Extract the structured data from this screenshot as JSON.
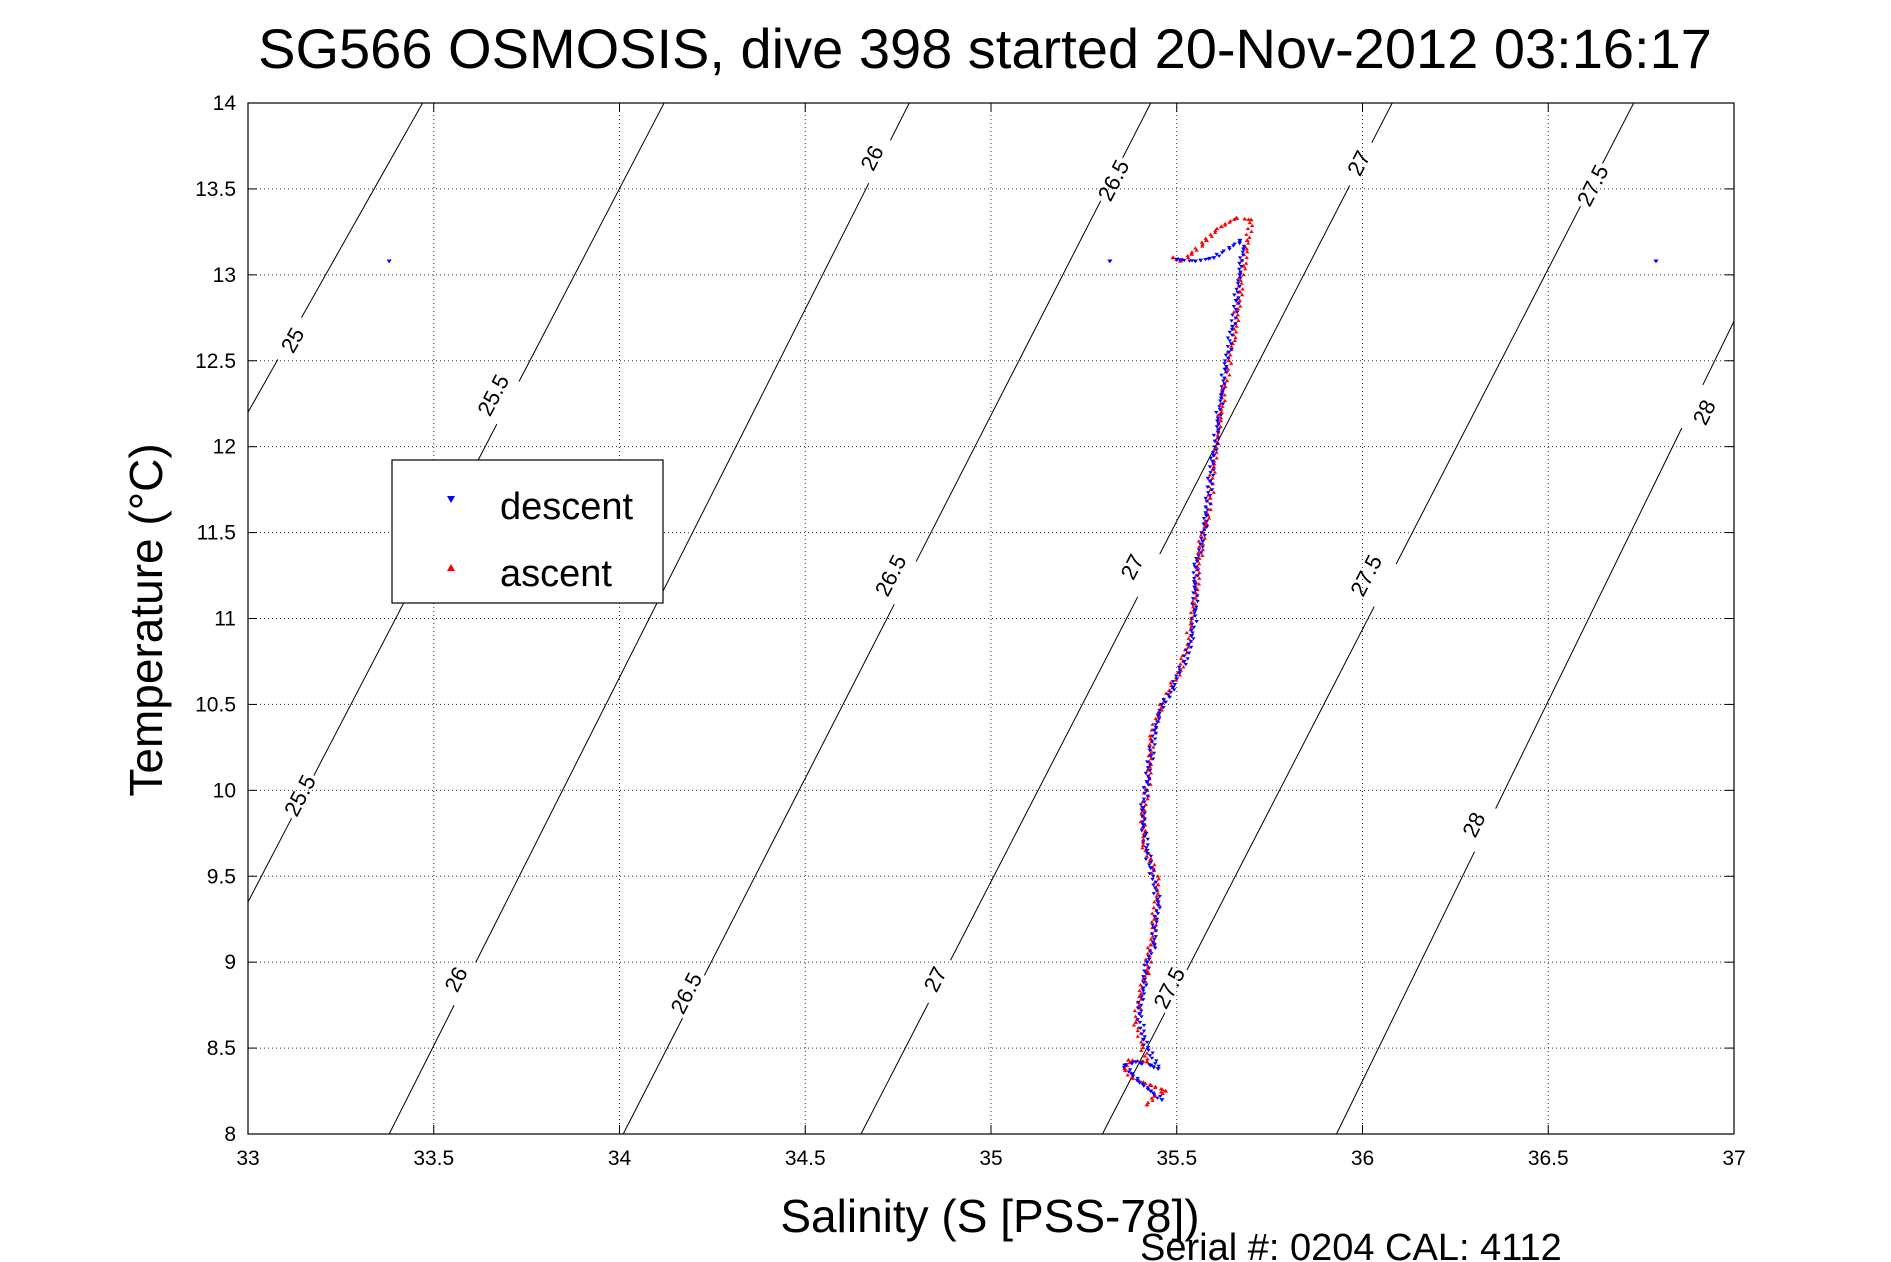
{
  "chart_data": {
    "type": "scatter",
    "title": "SG566 OSMOSIS, dive 398 started 20-Nov-2012 03:16:17",
    "xlabel": "Salinity (S [PSS-78])",
    "ylabel": "Temperature (°C)",
    "xlim": [
      33,
      37
    ],
    "ylim": [
      8,
      14
    ],
    "grid": true,
    "legend_position": "upper-left",
    "x_ticks": [
      33,
      33.5,
      34,
      34.5,
      35,
      35.5,
      36,
      36.5,
      37
    ],
    "x_tick_labels": [
      "33",
      "33.5",
      "34",
      "34.5",
      "35",
      "35.5",
      "36",
      "36.5",
      "37"
    ],
    "y_ticks": [
      8,
      8.5,
      9,
      9.5,
      10,
      10.5,
      11,
      11.5,
      12,
      12.5,
      13,
      13.5,
      14
    ],
    "y_tick_labels": [
      "8",
      "8.5",
      "9",
      "9.5",
      "10",
      "10.5",
      "11",
      "11.5",
      "12",
      "12.5",
      "13",
      "13.5",
      "14"
    ],
    "density_contours": [
      {
        "label": "25",
        "line": [
          [
            33,
            12.2
          ],
          [
            33.47,
            14
          ]
        ],
        "label_at": [
          [
            33.12,
            12.62
          ]
        ]
      },
      {
        "label": "25.5",
        "line": [
          [
            33,
            9.35
          ],
          [
            34.12,
            14
          ]
        ],
        "label_at": [
          [
            33.14,
            9.97
          ],
          [
            33.66,
            12.3
          ]
        ]
      },
      {
        "label": "26",
        "line": [
          [
            33.38,
            8
          ],
          [
            34.78,
            14
          ]
        ],
        "label_at": [
          [
            33.56,
            8.9
          ],
          [
            34.68,
            13.68
          ]
        ]
      },
      {
        "label": "26.5",
        "line": [
          [
            34.01,
            8
          ],
          [
            35.43,
            14
          ]
        ],
        "label_at": [
          [
            34.18,
            8.82
          ],
          [
            34.73,
            11.25
          ],
          [
            35.33,
            13.55
          ]
        ]
      },
      {
        "label": "27",
        "line": [
          [
            34.65,
            8
          ],
          [
            36.08,
            14
          ]
        ],
        "label_at": [
          [
            34.85,
            8.9
          ],
          [
            35.38,
            11.3
          ],
          [
            35.99,
            13.65
          ]
        ]
      },
      {
        "label": "27.5",
        "line": [
          [
            35.3,
            8
          ],
          [
            36.73,
            14
          ]
        ],
        "label_at": [
          [
            35.48,
            8.85
          ],
          [
            36.01,
            11.25
          ],
          [
            36.62,
            13.52
          ]
        ]
      },
      {
        "label": "28",
        "line": [
          [
            35.93,
            8
          ],
          [
            37,
            12.73
          ]
        ],
        "label_at": [
          [
            36.3,
            9.8
          ],
          [
            36.92,
            12.2
          ]
        ]
      }
    ],
    "series": [
      {
        "name": "descent",
        "color": "#0000ff",
        "marker": "triangle-down",
        "points": [
          [
            33.38,
            13.08
          ],
          [
            35.32,
            13.08
          ],
          [
            36.79,
            13.08
          ],
          [
            35.46,
            8.2
          ],
          [
            35.43,
            8.25
          ],
          [
            35.4,
            8.3
          ],
          [
            35.38,
            8.35
          ],
          [
            35.36,
            8.4
          ],
          [
            35.39,
            8.42
          ],
          [
            35.43,
            8.4
          ],
          [
            35.45,
            8.38
          ],
          [
            35.41,
            8.55
          ],
          [
            35.4,
            8.7
          ],
          [
            35.41,
            8.85
          ],
          [
            35.42,
            9.0
          ],
          [
            35.44,
            9.1
          ],
          [
            35.44,
            9.2
          ],
          [
            35.45,
            9.35
          ],
          [
            35.43,
            9.55
          ],
          [
            35.42,
            9.65
          ],
          [
            35.41,
            9.8
          ],
          [
            35.41,
            9.9
          ],
          [
            35.42,
            10.05
          ],
          [
            35.43,
            10.2
          ],
          [
            35.44,
            10.35
          ],
          [
            35.46,
            10.5
          ],
          [
            35.49,
            10.6
          ],
          [
            35.52,
            10.75
          ],
          [
            35.54,
            10.9
          ],
          [
            35.55,
            11.05
          ],
          [
            35.55,
            11.2
          ],
          [
            35.55,
            11.3
          ],
          [
            35.57,
            11.45
          ],
          [
            35.58,
            11.6
          ],
          [
            35.59,
            11.8
          ],
          [
            35.6,
            11.95
          ],
          [
            35.61,
            12.15
          ],
          [
            35.62,
            12.3
          ],
          [
            35.63,
            12.45
          ],
          [
            35.64,
            12.55
          ],
          [
            35.65,
            12.7
          ],
          [
            35.66,
            12.85
          ],
          [
            35.67,
            13.0
          ],
          [
            35.68,
            13.15
          ],
          [
            35.67,
            13.2
          ],
          [
            35.6,
            13.1
          ],
          [
            35.55,
            13.08
          ],
          [
            35.5,
            13.09
          ]
        ]
      },
      {
        "name": "ascent",
        "color": "#ff0000",
        "marker": "triangle-up",
        "points": [
          [
            35.42,
            8.17
          ],
          [
            35.44,
            8.22
          ],
          [
            35.47,
            8.25
          ],
          [
            35.41,
            8.3
          ],
          [
            35.38,
            8.33
          ],
          [
            35.36,
            8.38
          ],
          [
            35.37,
            8.43
          ],
          [
            35.42,
            8.42
          ],
          [
            35.39,
            8.65
          ],
          [
            35.4,
            8.8
          ],
          [
            35.42,
            8.95
          ],
          [
            35.43,
            9.1
          ],
          [
            35.44,
            9.25
          ],
          [
            35.45,
            9.45
          ],
          [
            35.43,
            9.6
          ],
          [
            35.41,
            9.68
          ],
          [
            35.41,
            9.85
          ],
          [
            35.42,
            10.0
          ],
          [
            35.43,
            10.15
          ],
          [
            35.43,
            10.3
          ],
          [
            35.45,
            10.45
          ],
          [
            35.48,
            10.58
          ],
          [
            35.51,
            10.7
          ],
          [
            35.53,
            10.85
          ],
          [
            35.54,
            11.0
          ],
          [
            35.55,
            11.15
          ],
          [
            35.56,
            11.35
          ],
          [
            35.57,
            11.5
          ],
          [
            35.58,
            11.55
          ],
          [
            35.59,
            11.7
          ],
          [
            35.6,
            11.9
          ],
          [
            35.61,
            12.05
          ],
          [
            35.62,
            12.2
          ],
          [
            35.63,
            12.35
          ],
          [
            35.64,
            12.5
          ],
          [
            35.65,
            12.6
          ],
          [
            35.66,
            12.75
          ],
          [
            35.67,
            12.9
          ],
          [
            35.68,
            13.05
          ],
          [
            35.69,
            13.2
          ],
          [
            35.7,
            13.32
          ],
          [
            35.66,
            13.33
          ],
          [
            35.62,
            13.28
          ],
          [
            35.58,
            13.2
          ],
          [
            35.54,
            13.12
          ],
          [
            35.51,
            13.08
          ],
          [
            35.49,
            13.1
          ]
        ]
      }
    ],
    "footer": "Serial #: 0204  CAL: 4112"
  }
}
